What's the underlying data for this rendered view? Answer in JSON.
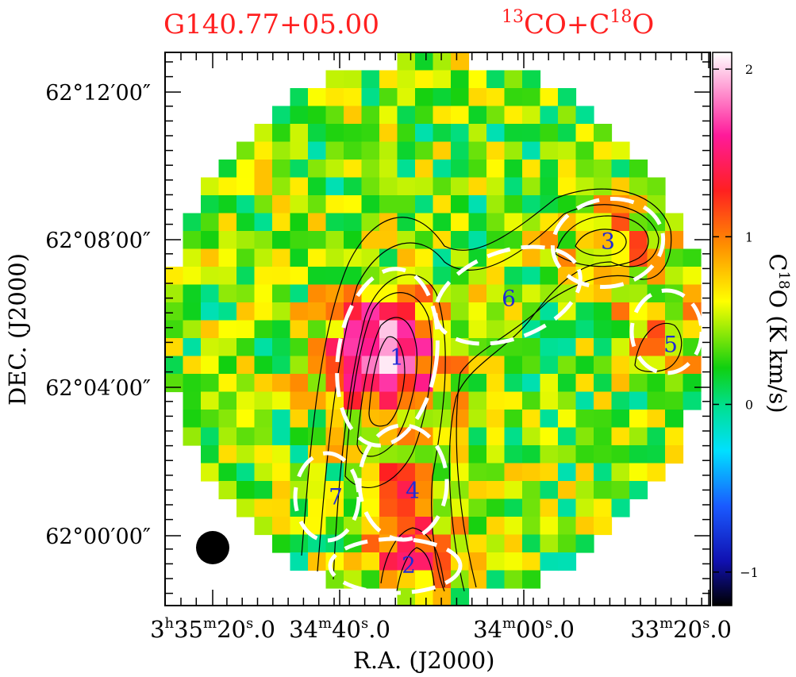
{
  "chart_data": {
    "type": "heatmap",
    "title_left": "G140.77+05.00",
    "title_right": {
      "main1": "13",
      "main2": "CO+C",
      "sup": "18",
      "tail": "O"
    },
    "xlabel": "R.A.  (J2000)",
    "ylabel": "DEC.  (J2000)",
    "x_ticks": [
      {
        "parts": [
          [
            "3",
            ""
          ],
          [
            "h",
            "sup"
          ],
          [
            "35",
            ""
          ],
          [
            "m",
            "sup"
          ],
          [
            "20",
            ""
          ],
          [
            "s",
            "sup"
          ],
          [
            ".0",
            ""
          ]
        ]
      },
      {
        "parts": [
          [
            "34",
            ""
          ],
          [
            "m",
            "sup"
          ],
          [
            "40",
            ""
          ],
          [
            "s",
            "sup"
          ],
          [
            ".0",
            ""
          ]
        ]
      },
      {
        "parts": [
          [
            "34",
            ""
          ],
          [
            "m",
            "sup"
          ],
          [
            "00",
            ""
          ],
          [
            "s",
            "sup"
          ],
          [
            ".0",
            ""
          ]
        ]
      },
      {
        "parts": [
          [
            "33",
            ""
          ],
          [
            "m",
            "sup"
          ],
          [
            "20",
            ""
          ],
          [
            "s",
            "sup"
          ],
          [
            ".0",
            ""
          ]
        ]
      }
    ],
    "y_ticks": [
      "62°12′00″",
      "62°08′00″",
      "62°04′00″",
      "62°00′00″"
    ],
    "colorbar": {
      "label_parts": [
        [
          "C",
          ""
        ],
        [
          "18",
          "sup"
        ],
        [
          "O  (K km/s)",
          ""
        ]
      ],
      "range": [
        -1.2,
        2.1
      ],
      "ticks": [
        "−1",
        "0",
        "1",
        "2"
      ],
      "tick_values": [
        -1,
        0,
        1,
        2
      ]
    },
    "clumps": [
      {
        "id": "1"
      },
      {
        "id": "2"
      },
      {
        "id": "3"
      },
      {
        "id": "4"
      },
      {
        "id": "5"
      },
      {
        "id": "6"
      },
      {
        "id": "7"
      }
    ],
    "beam": "filled circle",
    "contours": "13CO integrated intensity (black)",
    "ellipses": "white dashed"
  }
}
